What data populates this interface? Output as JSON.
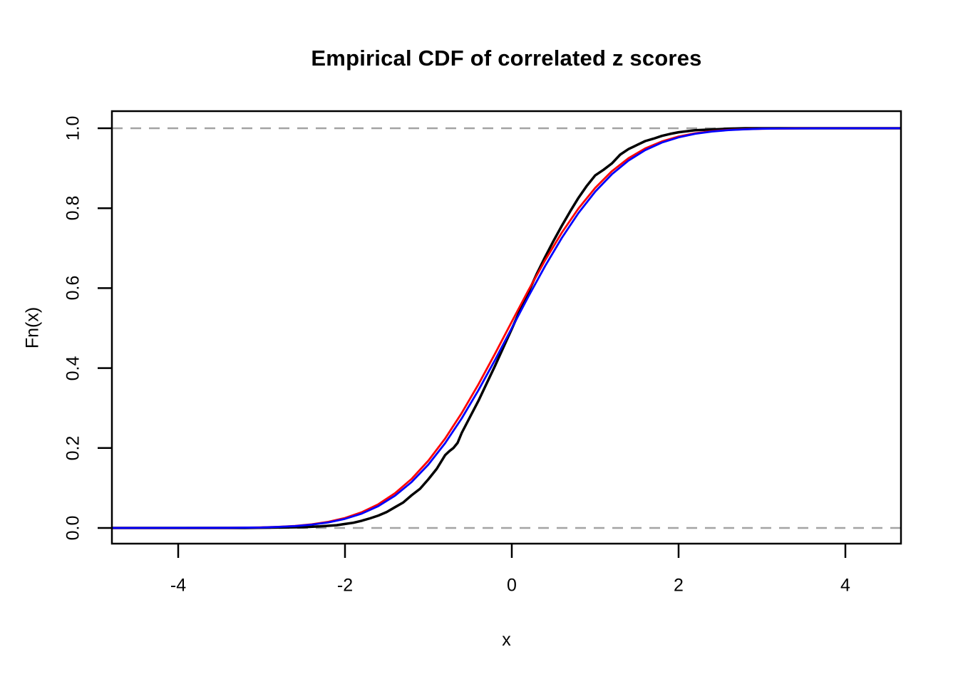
{
  "chart_data": {
    "type": "line",
    "title": "Empirical CDF of correlated z scores",
    "xlabel": "x",
    "ylabel": "Fn(x)",
    "xlim": [
      -4.8,
      4.67
    ],
    "ylim": [
      -0.04,
      1.04
    ],
    "grid": "off",
    "legend": "none",
    "box_color": "#000000",
    "x_ticks": [
      {
        "v": -4,
        "label": "-4"
      },
      {
        "v": -2,
        "label": "-2"
      },
      {
        "v": 0,
        "label": "0"
      },
      {
        "v": 2,
        "label": "2"
      },
      {
        "v": 4,
        "label": "4"
      }
    ],
    "y_ticks": [
      {
        "v": 0.0,
        "label": "0.0"
      },
      {
        "v": 0.2,
        "label": "0.2"
      },
      {
        "v": 0.4,
        "label": "0.4"
      },
      {
        "v": 0.6,
        "label": "0.6"
      },
      {
        "v": 0.8,
        "label": "0.8"
      },
      {
        "v": 1.0,
        "label": "1.0"
      }
    ],
    "reference_lines": {
      "style": "dashed",
      "color": "#A3A3A3",
      "y_values": [
        0,
        1
      ]
    },
    "series": [
      {
        "name": "empirical-ecdf",
        "color": "#000000",
        "width": 3.5,
        "points": [
          [
            -4.8,
            0
          ],
          [
            -3.2,
            0
          ],
          [
            -2.8,
            0.001
          ],
          [
            -2.5,
            0.002
          ],
          [
            -2.3,
            0.004
          ],
          [
            -2.1,
            0.007
          ],
          [
            -2.0,
            0.01
          ],
          [
            -1.9,
            0.013
          ],
          [
            -1.8,
            0.018
          ],
          [
            -1.7,
            0.024
          ],
          [
            -1.6,
            0.031
          ],
          [
            -1.5,
            0.04
          ],
          [
            -1.4,
            0.052
          ],
          [
            -1.3,
            0.064
          ],
          [
            -1.2,
            0.082
          ],
          [
            -1.1,
            0.098
          ],
          [
            -1.0,
            0.122
          ],
          [
            -0.9,
            0.148
          ],
          [
            -0.8,
            0.182
          ],
          [
            -0.75,
            0.192
          ],
          [
            -0.7,
            0.2
          ],
          [
            -0.65,
            0.213
          ],
          [
            -0.6,
            0.238
          ],
          [
            -0.5,
            0.278
          ],
          [
            -0.4,
            0.318
          ],
          [
            -0.3,
            0.362
          ],
          [
            -0.2,
            0.406
          ],
          [
            -0.1,
            0.452
          ],
          [
            0,
            0.498
          ],
          [
            0.1,
            0.545
          ],
          [
            0.2,
            0.59
          ],
          [
            0.3,
            0.636
          ],
          [
            0.4,
            0.678
          ],
          [
            0.5,
            0.718
          ],
          [
            0.6,
            0.756
          ],
          [
            0.7,
            0.792
          ],
          [
            0.8,
            0.826
          ],
          [
            0.9,
            0.856
          ],
          [
            1.0,
            0.882
          ],
          [
            1.1,
            0.896
          ],
          [
            1.2,
            0.912
          ],
          [
            1.3,
            0.934
          ],
          [
            1.4,
            0.948
          ],
          [
            1.5,
            0.958
          ],
          [
            1.6,
            0.968
          ],
          [
            1.7,
            0.974
          ],
          [
            1.8,
            0.981
          ],
          [
            1.9,
            0.986
          ],
          [
            2.0,
            0.99
          ],
          [
            2.2,
            0.995
          ],
          [
            2.4,
            0.997
          ],
          [
            2.6,
            0.999
          ],
          [
            2.8,
            1
          ],
          [
            4.67,
            1
          ]
        ]
      },
      {
        "name": "theoretical-cdf-red",
        "color": "#FF0000",
        "width": 2.8,
        "points": [
          [
            -4.8,
            0
          ],
          [
            -3.4,
            0.0004
          ],
          [
            -3.0,
            0.0015
          ],
          [
            -2.8,
            0.0029
          ],
          [
            -2.6,
            0.0052
          ],
          [
            -2.4,
            0.0091
          ],
          [
            -2.2,
            0.0154
          ],
          [
            -2.0,
            0.025
          ],
          [
            -1.8,
            0.0392
          ],
          [
            -1.6,
            0.0594
          ],
          [
            -1.4,
            0.0869
          ],
          [
            -1.2,
            0.123
          ],
          [
            -1.0,
            0.1685
          ],
          [
            -0.8,
            0.2236
          ],
          [
            -0.6,
            0.2877
          ],
          [
            -0.4,
            0.3594
          ],
          [
            -0.2,
            0.4364
          ],
          [
            0,
            0.516
          ],
          [
            0.2,
            0.5948
          ],
          [
            0.4,
            0.67
          ],
          [
            0.6,
            0.7389
          ],
          [
            0.8,
            0.7995
          ],
          [
            1.0,
            0.8508
          ],
          [
            1.2,
            0.8925
          ],
          [
            1.4,
            0.9251
          ],
          [
            1.6,
            0.9495
          ],
          [
            1.8,
            0.9671
          ],
          [
            2.0,
            0.9793
          ],
          [
            2.2,
            0.9875
          ],
          [
            2.4,
            0.9927
          ],
          [
            2.6,
            0.9959
          ],
          [
            2.8,
            0.9977
          ],
          [
            3.0,
            0.9988
          ],
          [
            3.4,
            0.9997
          ],
          [
            4.0,
            1
          ],
          [
            4.67,
            1
          ]
        ]
      },
      {
        "name": "theoretical-cdf-blue",
        "color": "#0000FF",
        "width": 2.8,
        "points": [
          [
            -4.8,
            0
          ],
          [
            -3.4,
            0.0003
          ],
          [
            -3.0,
            0.0013
          ],
          [
            -2.8,
            0.0026
          ],
          [
            -2.6,
            0.0047
          ],
          [
            -2.4,
            0.0082
          ],
          [
            -2.2,
            0.0139
          ],
          [
            -2.0,
            0.0228
          ],
          [
            -1.8,
            0.0359
          ],
          [
            -1.6,
            0.0548
          ],
          [
            -1.4,
            0.0808
          ],
          [
            -1.2,
            0.1151
          ],
          [
            -1.0,
            0.1587
          ],
          [
            -0.8,
            0.2119
          ],
          [
            -0.6,
            0.2743
          ],
          [
            -0.4,
            0.3446
          ],
          [
            -0.2,
            0.4207
          ],
          [
            0,
            0.5
          ],
          [
            0.2,
            0.5793
          ],
          [
            0.4,
            0.6554
          ],
          [
            0.6,
            0.7257
          ],
          [
            0.8,
            0.7881
          ],
          [
            1.0,
            0.8413
          ],
          [
            1.2,
            0.8849
          ],
          [
            1.4,
            0.9192
          ],
          [
            1.6,
            0.9452
          ],
          [
            1.8,
            0.9641
          ],
          [
            2.0,
            0.9772
          ],
          [
            2.2,
            0.9861
          ],
          [
            2.4,
            0.9918
          ],
          [
            2.6,
            0.9953
          ],
          [
            2.8,
            0.9974
          ],
          [
            3.0,
            0.9987
          ],
          [
            3.2,
            0.9993
          ],
          [
            3.6,
            0.9998
          ],
          [
            4.0,
            1
          ],
          [
            4.67,
            1
          ]
        ]
      }
    ]
  }
}
